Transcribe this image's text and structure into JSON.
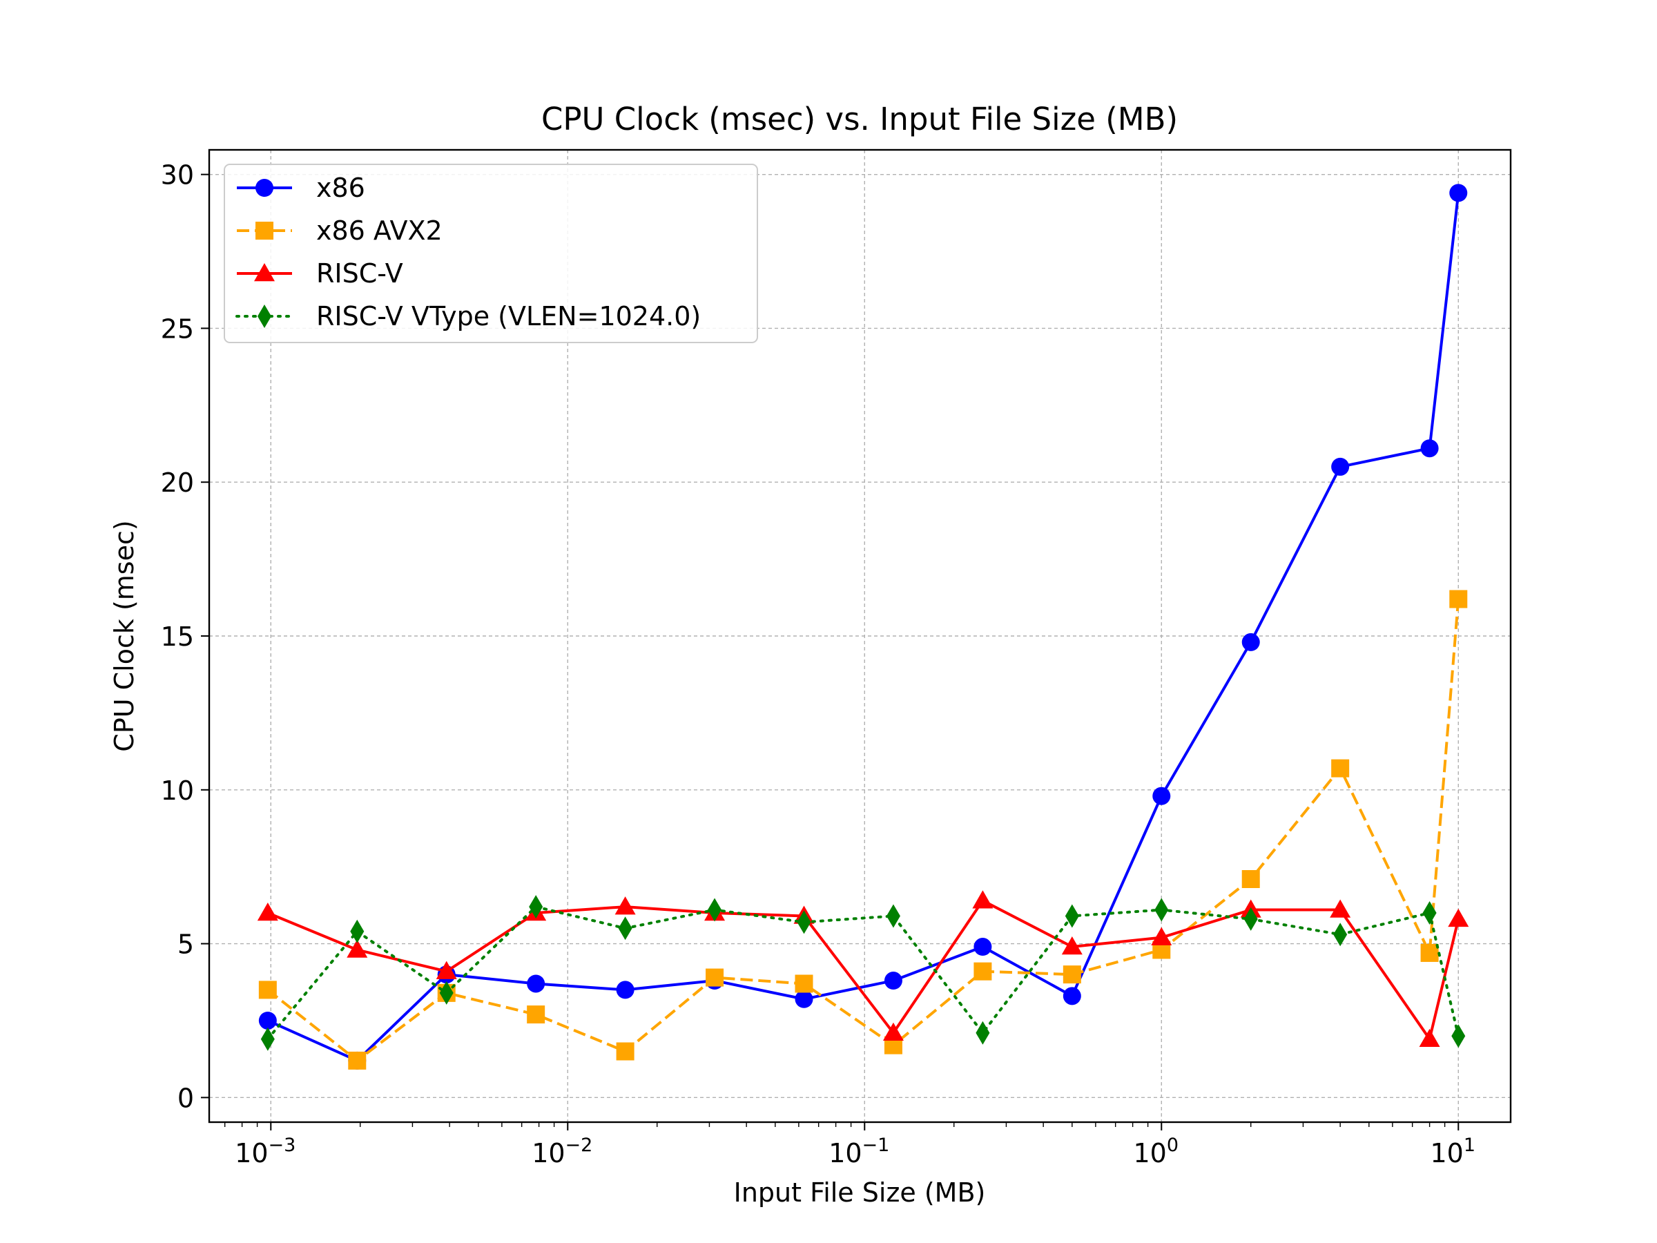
{
  "chart_data": {
    "type": "line",
    "title": "CPU Clock (msec) vs. Input File Size (MB)",
    "xlabel": "Input File Size (MB)",
    "ylabel": "CPU Clock (msec)",
    "xscale": "log",
    "xlim": [
      0.00062,
      15
    ],
    "ylim": [
      -0.8,
      30.8
    ],
    "xticks": [
      {
        "value": 0.001,
        "base": "10",
        "exp": "−3"
      },
      {
        "value": 0.01,
        "base": "10",
        "exp": "−2"
      },
      {
        "value": 0.1,
        "base": "10",
        "exp": "−1"
      },
      {
        "value": 1,
        "base": "10",
        "exp": "0"
      },
      {
        "value": 10,
        "base": "10",
        "exp": "1"
      }
    ],
    "yticks": [
      {
        "value": 0,
        "label": "0"
      },
      {
        "value": 5,
        "label": "5"
      },
      {
        "value": 10,
        "label": "10"
      },
      {
        "value": 15,
        "label": "15"
      },
      {
        "value": 20,
        "label": "20"
      },
      {
        "value": 25,
        "label": "25"
      },
      {
        "value": 30,
        "label": "30"
      }
    ],
    "grid": true,
    "legend_position": "upper-left",
    "x": [
      0.0009765625,
      0.001953125,
      0.00390625,
      0.0078125,
      0.015625,
      0.03125,
      0.0625,
      0.125,
      0.25,
      0.5,
      1,
      2,
      4,
      8,
      10
    ],
    "series": [
      {
        "name": "x86",
        "color": "#0000ff",
        "marker": "circle",
        "linestyle": "solid",
        "values": [
          2.5,
          1.2,
          4.0,
          3.7,
          3.5,
          3.8,
          3.2,
          3.8,
          4.9,
          3.3,
          9.8,
          14.8,
          20.5,
          21.1,
          29.4
        ]
      },
      {
        "name": "x86 AVX2",
        "color": "#ffa500",
        "marker": "square",
        "linestyle": "dashed",
        "values": [
          3.5,
          1.2,
          3.4,
          2.7,
          1.5,
          3.9,
          3.7,
          1.7,
          4.1,
          4.0,
          4.8,
          7.1,
          10.7,
          4.7,
          16.2
        ]
      },
      {
        "name": "RISC-V",
        "color": "#ff0000",
        "marker": "triangle",
        "linestyle": "solid",
        "values": [
          6.0,
          4.8,
          4.1,
          6.0,
          6.2,
          6.0,
          5.9,
          2.1,
          6.4,
          4.9,
          5.2,
          6.1,
          6.1,
          1.9,
          5.8
        ]
      },
      {
        "name": "RISC-V VType (VLEN=1024.0)",
        "color": "#008000",
        "marker": "diamond",
        "linestyle": "dotted",
        "values": [
          1.9,
          5.4,
          3.4,
          6.2,
          5.5,
          6.1,
          5.7,
          5.9,
          2.1,
          5.9,
          6.1,
          5.8,
          5.3,
          6.0,
          2.0
        ]
      }
    ]
  }
}
